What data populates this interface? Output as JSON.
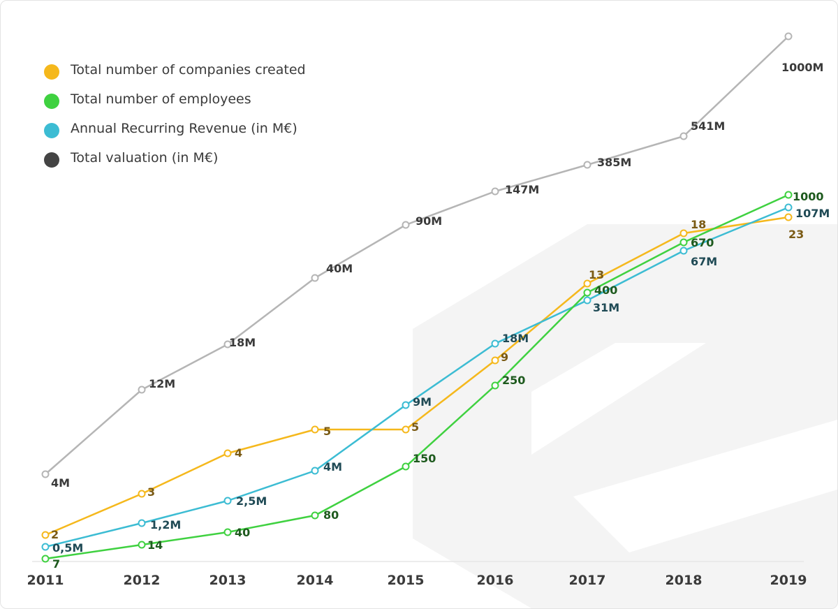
{
  "chart_data": {
    "type": "line",
    "title": "",
    "xlabel": "",
    "ylabel": "",
    "x": [
      "2011",
      "2012",
      "2013",
      "2014",
      "2015",
      "2016",
      "2017",
      "2018",
      "2019"
    ],
    "legend_position": "top-left",
    "grid": false,
    "series": [
      {
        "name": "Total number of companies created",
        "color": "#f5b81c",
        "label_color": "#7a5a14",
        "values": [
          2,
          3,
          4,
          5,
          5,
          9,
          13,
          18,
          23
        ],
        "labels": [
          "2",
          "3",
          "4",
          "5",
          "5",
          "9",
          "13",
          "18",
          "23"
        ]
      },
      {
        "name": "Total number of employees",
        "color": "#3fd140",
        "label_color": "#1e5a1e",
        "values": [
          7,
          14,
          40,
          80,
          150,
          250,
          400,
          670,
          1000
        ],
        "labels": [
          "7",
          "14",
          "40",
          "80",
          "150",
          "250",
          "400",
          "670",
          "1000"
        ]
      },
      {
        "name": "Annual Recurring Revenue (in M€)",
        "color": "#3cbcd3",
        "label_color": "#1f4a55",
        "values": [
          0.5,
          1.2,
          2.5,
          4,
          9,
          18,
          31,
          67,
          107
        ],
        "labels": [
          "0,5M",
          "1,2M",
          "2,5M",
          "4M",
          "9M",
          "18M",
          "31M",
          "67M",
          "107M"
        ]
      },
      {
        "name": "Total valuation (in M€)",
        "color": "#b5b5b5",
        "label_color": "#3a3a3a",
        "legend_color": "#444444",
        "values": [
          4,
          12,
          18,
          40,
          90,
          147,
          385,
          541,
          1000
        ],
        "labels": [
          "4M",
          "12M",
          "18M",
          "40M",
          "90M",
          "147M",
          "385M",
          "541M",
          "1000M"
        ]
      }
    ]
  }
}
